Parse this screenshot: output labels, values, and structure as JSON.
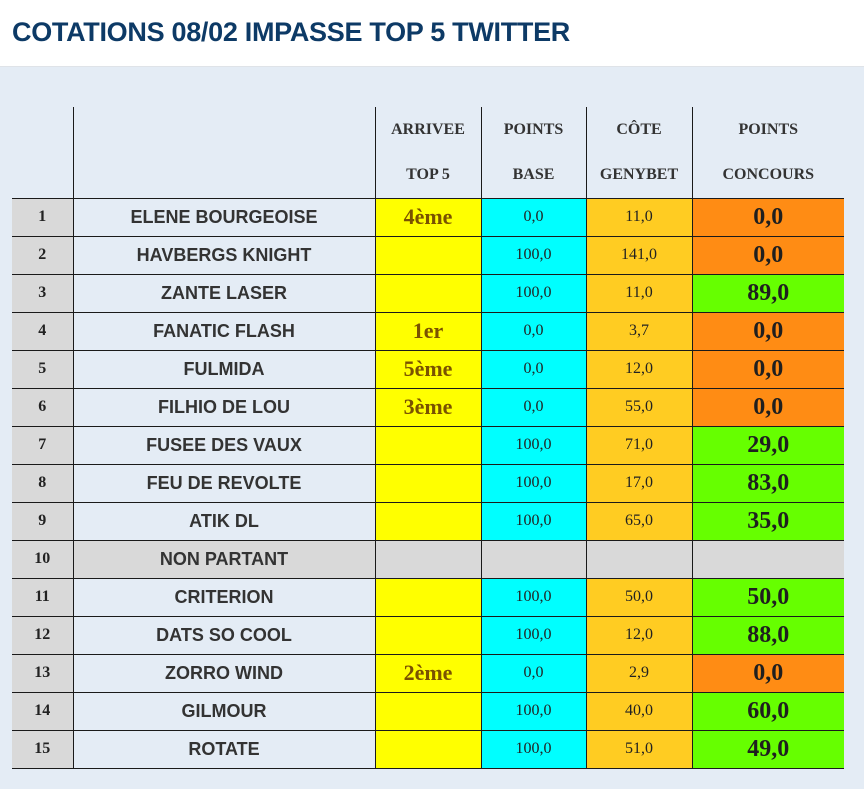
{
  "page": {
    "title": "COTATIONS 08/02 IMPASSE TOP 5 TWITTER"
  },
  "table": {
    "headers": {
      "arrivee": [
        "ARRIVEE",
        "TOP 5"
      ],
      "base": [
        "POINTS",
        "BASE"
      ],
      "cote": [
        "CÔTE",
        "GENYBET"
      ],
      "concours": [
        "POINTS",
        "CONCOURS"
      ]
    },
    "rows": [
      {
        "num": "1",
        "name": "ELENE BOURGEOISE",
        "arrivee": "4ème",
        "base": "0,0",
        "cote": "11,0",
        "points": "0,0"
      },
      {
        "num": "2",
        "name": "HAVBERGS KNIGHT",
        "arrivee": "",
        "base": "100,0",
        "cote": "141,0",
        "points": "0,0"
      },
      {
        "num": "3",
        "name": "ZANTE LASER",
        "arrivee": "",
        "base": "100,0",
        "cote": "11,0",
        "points": "89,0"
      },
      {
        "num": "4",
        "name": "FANATIC FLASH",
        "arrivee": "1er",
        "base": "0,0",
        "cote": "3,7",
        "points": "0,0"
      },
      {
        "num": "5",
        "name": "FULMIDA",
        "arrivee": "5ème",
        "base": "0,0",
        "cote": "12,0",
        "points": "0,0"
      },
      {
        "num": "6",
        "name": "FILHIO DE LOU",
        "arrivee": "3ème",
        "base": "0,0",
        "cote": "55,0",
        "points": "0,0"
      },
      {
        "num": "7",
        "name": "FUSEE DES VAUX",
        "arrivee": "",
        "base": "100,0",
        "cote": "71,0",
        "points": "29,0"
      },
      {
        "num": "8",
        "name": "FEU DE REVOLTE",
        "arrivee": "",
        "base": "100,0",
        "cote": "17,0",
        "points": "83,0"
      },
      {
        "num": "9",
        "name": "ATIK DL",
        "arrivee": "",
        "base": "100,0",
        "cote": "65,0",
        "points": "35,0"
      },
      {
        "num": "10",
        "name": "NON PARTANT",
        "arrivee": "",
        "base": "",
        "cote": "",
        "points": "",
        "non_partant": true
      },
      {
        "num": "11",
        "name": "CRITERION",
        "arrivee": "",
        "base": "100,0",
        "cote": "50,0",
        "points": "50,0"
      },
      {
        "num": "12",
        "name": "DATS SO COOL",
        "arrivee": "",
        "base": "100,0",
        "cote": "12,0",
        "points": "88,0"
      },
      {
        "num": "13",
        "name": "ZORRO WIND",
        "arrivee": "2ème",
        "base": "0,0",
        "cote": "2,9",
        "points": "0,0"
      },
      {
        "num": "14",
        "name": "GILMOUR",
        "arrivee": "",
        "base": "100,0",
        "cote": "40,0",
        "points": "60,0"
      },
      {
        "num": "15",
        "name": "ROTATE",
        "arrivee": "",
        "base": "100,0",
        "cote": "51,0",
        "points": "49,0"
      }
    ]
  },
  "colors": {
    "title": "#0d3a66",
    "arrivee_bg": "#ffff00",
    "base_bg": "#00ffff",
    "cote_bg": "#ffcc22",
    "points_zero_bg": "#ff8c14",
    "points_positive_bg": "#66ff00",
    "non_partant_bg": "#d9d9d9"
  }
}
